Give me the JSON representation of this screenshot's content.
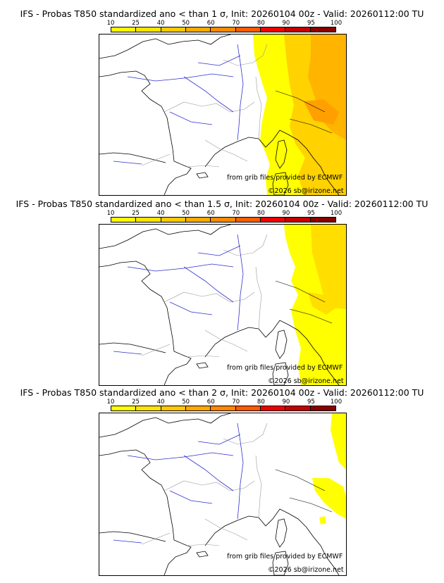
{
  "colorbar": {
    "labels": [
      "10",
      "25",
      "40",
      "50",
      "60",
      "70",
      "80",
      "90",
      "95",
      "100"
    ],
    "colors": [
      "#ffff00",
      "#ffe400",
      "#ffc800",
      "#ffa800",
      "#ff8800",
      "#ff5a00",
      "#ee0000",
      "#c40000",
      "#8a0000"
    ]
  },
  "colors": {
    "sea_land_outline": "#000000",
    "borders": "#9a9a9a",
    "rivers": "#3030d0",
    "prob_yellow": "#ffff00",
    "prob_gold": "#ffd200",
    "prob_orange": "#ffb400"
  },
  "panels": [
    {
      "title": "IFS - Probas T850  standardized ano < than 1 σ, Init: 20260104 00z - Valid: 20260112:00 TU",
      "credit1": "from grib files provided by ECMWF",
      "credit2": "©2026 sb@irizone.net"
    },
    {
      "title": "IFS - Probas T850  standardized ano < than 1.5 σ, Init: 20260104 00z - Valid: 20260112:00 TU",
      "credit1": "from grib files provided by ECMWF",
      "credit2": "©2026 sb@irizone.net"
    },
    {
      "title": "IFS - Probas T850  standardized ano < than 2 σ, Init: 20260104 00z - Valid: 20260112:00 TU",
      "credit1": "from grib files provided by ECMWF",
      "credit2": "©2026 sb@irizone.net"
    }
  ]
}
